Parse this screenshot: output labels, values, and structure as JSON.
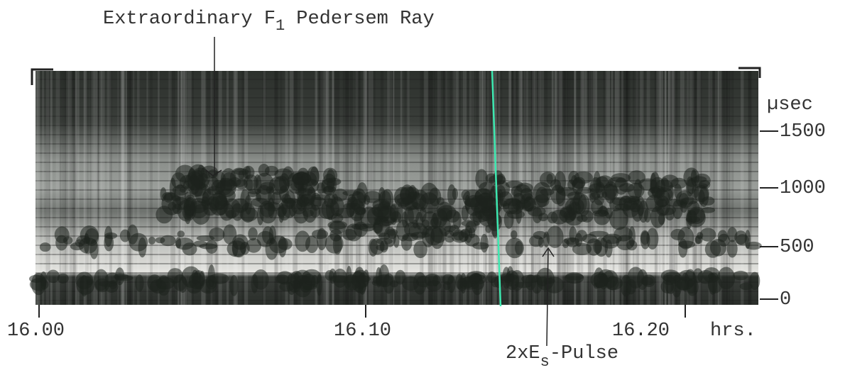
{
  "figure": {
    "top_annotation": [
      "Extraordinary F",
      "1",
      "Pedersem Ray"
    ],
    "bottom_annotation": [
      "2xE",
      "s",
      "-Pulse"
    ],
    "y_axis": {
      "unit": "µsec",
      "ticks": [
        "1500",
        "1000",
        "500",
        "0"
      ]
    },
    "x_axis": {
      "unit": "hrs.",
      "ticks": [
        "16.00",
        "16.10",
        "16.20"
      ]
    }
  }
}
